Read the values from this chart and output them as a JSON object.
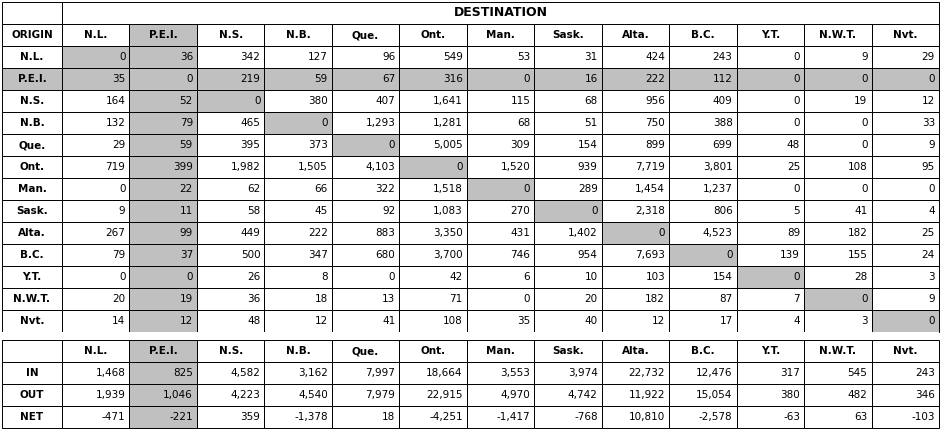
{
  "title": "DESTINATION",
  "col_headers": [
    "N.L.",
    "P.E.I.",
    "N.S.",
    "N.B.",
    "Que.",
    "Ont.",
    "Man.",
    "Sask.",
    "Alta.",
    "B.C.",
    "Y.T.",
    "N.W.T.",
    "Nvt."
  ],
  "row_headers": [
    "N.L.",
    "P.E.I.",
    "N.S.",
    "N.B.",
    "Que.",
    "Ont.",
    "Man.",
    "Sask.",
    "Alta.",
    "B.C.",
    "Y.T.",
    "N.W.T.",
    "Nvt."
  ],
  "main_data": [
    [
      0,
      36,
      342,
      127,
      96,
      549,
      53,
      31,
      424,
      243,
      0,
      9,
      29
    ],
    [
      35,
      0,
      219,
      59,
      67,
      316,
      0,
      16,
      222,
      112,
      0,
      0,
      0
    ],
    [
      164,
      52,
      0,
      380,
      407,
      1641,
      115,
      68,
      956,
      409,
      0,
      19,
      12
    ],
    [
      132,
      79,
      465,
      0,
      1293,
      1281,
      68,
      51,
      750,
      388,
      0,
      0,
      33
    ],
    [
      29,
      59,
      395,
      373,
      0,
      5005,
      309,
      154,
      899,
      699,
      48,
      0,
      9
    ],
    [
      719,
      399,
      1982,
      1505,
      4103,
      0,
      1520,
      939,
      7719,
      3801,
      25,
      108,
      95
    ],
    [
      0,
      22,
      62,
      66,
      322,
      1518,
      0,
      289,
      1454,
      1237,
      0,
      0,
      0
    ],
    [
      9,
      11,
      58,
      45,
      92,
      1083,
      270,
      0,
      2318,
      806,
      5,
      41,
      4
    ],
    [
      267,
      99,
      449,
      222,
      883,
      3350,
      431,
      1402,
      0,
      4523,
      89,
      182,
      25
    ],
    [
      79,
      37,
      500,
      347,
      680,
      3700,
      746,
      954,
      7693,
      0,
      139,
      155,
      24
    ],
    [
      0,
      0,
      26,
      8,
      0,
      42,
      6,
      10,
      103,
      154,
      0,
      28,
      3
    ],
    [
      20,
      19,
      36,
      18,
      13,
      71,
      0,
      20,
      182,
      87,
      7,
      0,
      9
    ],
    [
      14,
      12,
      48,
      12,
      41,
      108,
      35,
      40,
      12,
      17,
      4,
      3,
      0
    ]
  ],
  "summary_labels": [
    "IN",
    "OUT",
    "NET"
  ],
  "summary_data": [
    [
      1468,
      825,
      4582,
      3162,
      7997,
      18664,
      3553,
      3974,
      22732,
      12476,
      317,
      545,
      243
    ],
    [
      1939,
      1046,
      4223,
      4540,
      7979,
      22915,
      4970,
      4742,
      11922,
      15054,
      380,
      482,
      346
    ],
    [
      -471,
      -221,
      359,
      -1378,
      18,
      -4251,
      -1417,
      -768,
      10810,
      -2578,
      -63,
      63,
      -103
    ]
  ],
  "color_gray": "#c0c0c0",
  "color_white": "#ffffff",
  "color_border": "#000000",
  "pei_row_idx": 1,
  "pei_col_idx": 1
}
